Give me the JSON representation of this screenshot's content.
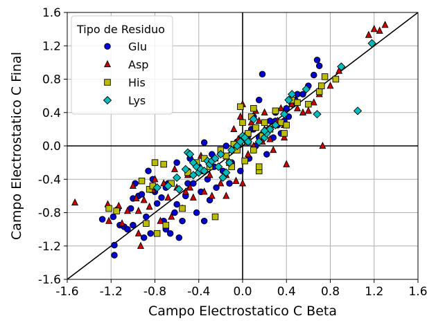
{
  "chart_data": {
    "type": "scatter",
    "xlabel": "Campo Electrostatico C Beta",
    "ylabel": "Campo Electrostatico C Final",
    "xlim": [
      -1.6,
      1.6
    ],
    "ylim": [
      -1.6,
      1.6
    ],
    "xticks": [
      "-1.6",
      "-1.2",
      "-0.8",
      "-0.4",
      "0.0",
      "0.4",
      "0.8",
      "1.2",
      "1.6"
    ],
    "yticks": [
      "-1.6",
      "-1.2",
      "-0.8",
      "-0.4",
      "0.0",
      "0.4",
      "0.8",
      "1.2",
      "1.6"
    ],
    "grid": true,
    "legend_title": "Tipo de Residuo",
    "legend_position": "top-left",
    "reference_line": {
      "from": [
        -1.6,
        -1.6
      ],
      "to": [
        1.6,
        1.6
      ]
    },
    "series": [
      {
        "name": "Glu",
        "marker": "circle",
        "color": "#0000cc",
        "points": [
          [
            -1.28,
            -0.88
          ],
          [
            -1.18,
            -0.85
          ],
          [
            -1.17,
            -1.19
          ],
          [
            -1.17,
            -1.31
          ],
          [
            -1.14,
            -0.76
          ],
          [
            -1.12,
            -0.95
          ],
          [
            -1.08,
            -0.97
          ],
          [
            -1.05,
            -1.0
          ],
          [
            -1.02,
            -0.75
          ],
          [
            -1.0,
            -0.63
          ],
          [
            -0.98,
            -0.45
          ],
          [
            -0.95,
            -0.6
          ],
          [
            -0.92,
            -0.58
          ],
          [
            -0.88,
            -0.85
          ],
          [
            -0.86,
            -0.3
          ],
          [
            -0.84,
            -1.05
          ],
          [
            -0.82,
            -0.4
          ],
          [
            -0.8,
            -0.55
          ],
          [
            -0.78,
            -0.69
          ],
          [
            -0.74,
            -0.62
          ],
          [
            -0.72,
            -0.9
          ],
          [
            -0.7,
            -1.0
          ],
          [
            -0.68,
            -0.45
          ],
          [
            -0.66,
            -1.05
          ],
          [
            -0.62,
            -0.8
          ],
          [
            -0.6,
            -0.7
          ],
          [
            -0.58,
            -1.1
          ],
          [
            -0.55,
            -0.9
          ],
          [
            -0.52,
            -0.6
          ],
          [
            -0.5,
            -0.3
          ],
          [
            -0.48,
            -0.15
          ],
          [
            -0.45,
            -0.45
          ],
          [
            -0.42,
            -0.8
          ],
          [
            -0.4,
            -0.25
          ],
          [
            -0.38,
            -0.55
          ],
          [
            -0.35,
            -0.9
          ],
          [
            -0.32,
            -0.4
          ],
          [
            -0.3,
            -0.65
          ],
          [
            -0.28,
            -0.1
          ],
          [
            -0.26,
            -0.25
          ],
          [
            -0.24,
            -0.5
          ],
          [
            -0.2,
            -0.1
          ],
          [
            -0.18,
            -0.3
          ],
          [
            -0.15,
            0.0
          ],
          [
            -0.12,
            -0.45
          ],
          [
            -0.1,
            -0.2
          ],
          [
            -0.08,
            -0.05
          ],
          [
            -0.05,
            0.05
          ],
          [
            -0.02,
            -0.3
          ],
          [
            0.0,
            0.1
          ],
          [
            0.04,
            0.05
          ],
          [
            0.06,
            -0.15
          ],
          [
            0.08,
            0.2
          ],
          [
            0.1,
            0.35
          ],
          [
            0.12,
            0.0
          ],
          [
            0.15,
            0.55
          ],
          [
            0.18,
            0.86
          ],
          [
            0.2,
            0.15
          ],
          [
            0.22,
            -0.1
          ],
          [
            0.25,
            0.3
          ],
          [
            0.28,
            0.1
          ],
          [
            0.3,
            0.4
          ],
          [
            0.32,
            0.25
          ],
          [
            0.35,
            0.15
          ],
          [
            0.38,
            0.3
          ],
          [
            0.4,
            0.45
          ],
          [
            0.42,
            0.35
          ],
          [
            0.45,
            0.5
          ],
          [
            0.48,
            0.55
          ],
          [
            0.5,
            0.62
          ],
          [
            0.55,
            0.62
          ],
          [
            0.6,
            0.72
          ],
          [
            0.65,
            0.85
          ],
          [
            0.68,
            1.03
          ],
          [
            0.7,
            0.96
          ],
          [
            -0.35,
            0.04
          ],
          [
            -0.6,
            -0.2
          ],
          [
            -0.9,
            -1.1
          ],
          [
            -1.0,
            -0.95
          ],
          [
            0.1,
            0.2
          ],
          [
            0.05,
            0.12
          ],
          [
            -0.5,
            -0.45
          ],
          [
            -0.3,
            -0.2
          ],
          [
            -0.7,
            -0.5
          ],
          [
            0.3,
            0.3
          ],
          [
            0.15,
            0.1
          ]
        ]
      },
      {
        "name": "Asp",
        "marker": "triangle",
        "color": "#cc0000",
        "points": [
          [
            -1.53,
            -0.68
          ],
          [
            -1.23,
            -0.7
          ],
          [
            -1.22,
            -0.9
          ],
          [
            -1.13,
            -0.72
          ],
          [
            -1.1,
            -0.93
          ],
          [
            -1.05,
            -0.78
          ],
          [
            -1.0,
            -0.48
          ],
          [
            -0.97,
            -0.63
          ],
          [
            -0.95,
            -1.05
          ],
          [
            -0.93,
            -1.2
          ],
          [
            -0.9,
            -0.65
          ],
          [
            -0.85,
            -0.73
          ],
          [
            -0.82,
            -0.53
          ],
          [
            -0.8,
            -0.4
          ],
          [
            -0.75,
            -0.9
          ],
          [
            -0.72,
            -0.45
          ],
          [
            -0.68,
            -0.62
          ],
          [
            -0.65,
            -0.85
          ],
          [
            -0.62,
            -0.28
          ],
          [
            -0.6,
            -0.5
          ],
          [
            -0.55,
            -0.75
          ],
          [
            -0.52,
            -0.55
          ],
          [
            -0.5,
            -0.35
          ],
          [
            -0.48,
            -0.5
          ],
          [
            -0.45,
            -0.62
          ],
          [
            -0.4,
            -0.3
          ],
          [
            -0.38,
            -0.12
          ],
          [
            -0.35,
            -0.55
          ],
          [
            -0.3,
            -0.35
          ],
          [
            -0.28,
            -0.6
          ],
          [
            -0.25,
            -0.15
          ],
          [
            -0.2,
            -0.45
          ],
          [
            -0.15,
            -0.35
          ],
          [
            -0.12,
            -0.2
          ],
          [
            -0.1,
            -0.05
          ],
          [
            -0.08,
            0.2
          ],
          [
            -0.06,
            -0.42
          ],
          [
            -0.04,
            0.08
          ],
          [
            -0.02,
            0.35
          ],
          [
            0.0,
            0.5
          ],
          [
            0.02,
            0.12
          ],
          [
            0.05,
            -0.1
          ],
          [
            0.08,
            0.28
          ],
          [
            0.1,
            0.0
          ],
          [
            0.12,
            0.42
          ],
          [
            0.15,
            0.3
          ],
          [
            0.18,
            0.05
          ],
          [
            0.2,
            0.2
          ],
          [
            0.25,
            0.08
          ],
          [
            0.28,
            -0.05
          ],
          [
            0.3,
            0.25
          ],
          [
            0.32,
            0.3
          ],
          [
            0.35,
            0.45
          ],
          [
            0.38,
            0.25
          ],
          [
            0.4,
            -0.22
          ],
          [
            0.43,
            0.55
          ],
          [
            0.45,
            0.5
          ],
          [
            0.5,
            0.45
          ],
          [
            0.55,
            0.4
          ],
          [
            0.6,
            0.42
          ],
          [
            0.65,
            0.52
          ],
          [
            0.7,
            0.62
          ],
          [
            0.73,
            0.0
          ],
          [
            0.8,
            0.72
          ],
          [
            0.88,
            0.9
          ],
          [
            1.15,
            1.33
          ],
          [
            1.2,
            1.4
          ],
          [
            1.25,
            1.38
          ],
          [
            1.3,
            1.45
          ],
          [
            -0.95,
            -0.78
          ],
          [
            -0.15,
            -0.6
          ],
          [
            0.0,
            -0.45
          ],
          [
            0.2,
            0.4
          ],
          [
            0.38,
            0.1
          ]
        ]
      },
      {
        "name": "His",
        "marker": "square",
        "color": "#bbbb00",
        "points": [
          [
            -1.22,
            -0.75
          ],
          [
            -1.15,
            -0.78
          ],
          [
            -0.92,
            -0.42
          ],
          [
            -0.88,
            -0.93
          ],
          [
            -0.85,
            -0.52
          ],
          [
            -0.82,
            -0.48
          ],
          [
            -0.8,
            -0.2
          ],
          [
            -0.78,
            -1.05
          ],
          [
            -0.72,
            -0.22
          ],
          [
            -0.7,
            -0.95
          ],
          [
            -0.55,
            -0.75
          ],
          [
            -0.5,
            -0.32
          ],
          [
            -0.42,
            -0.2
          ],
          [
            -0.38,
            -0.3
          ],
          [
            -0.35,
            -0.15
          ],
          [
            -0.3,
            -0.25
          ],
          [
            -0.25,
            -0.85
          ],
          [
            -0.2,
            -0.05
          ],
          [
            -0.15,
            -0.12
          ],
          [
            -0.12,
            -0.2
          ],
          [
            -0.1,
            -0.25
          ],
          [
            -0.08,
            0.02
          ],
          [
            -0.05,
            -0.05
          ],
          [
            -0.02,
            0.47
          ],
          [
            0.0,
            0.28
          ],
          [
            0.02,
            -0.18
          ],
          [
            0.05,
            0.05
          ],
          [
            0.08,
            0.35
          ],
          [
            0.1,
            0.45
          ],
          [
            0.12,
            0.22
          ],
          [
            0.15,
            -0.3
          ],
          [
            0.15,
            -0.25
          ],
          [
            0.18,
            0.12
          ],
          [
            0.2,
            0.28
          ],
          [
            0.25,
            0.2
          ],
          [
            0.3,
            0.42
          ],
          [
            0.35,
            0.28
          ],
          [
            0.38,
            0.15
          ],
          [
            0.4,
            0.25
          ],
          [
            0.45,
            0.55
          ],
          [
            0.5,
            0.52
          ],
          [
            0.6,
            0.5
          ],
          [
            0.7,
            0.65
          ],
          [
            0.72,
            0.72
          ],
          [
            0.75,
            0.83
          ],
          [
            0.85,
            0.8
          ],
          [
            0.1,
            -0.05
          ],
          [
            -0.65,
            -0.45
          ],
          [
            0.05,
            0.15
          ]
        ]
      },
      {
        "name": "Lys",
        "marker": "diamond",
        "color": "#00bbbb",
        "points": [
          [
            -0.78,
            -0.5
          ],
          [
            -0.68,
            -0.48
          ],
          [
            -0.6,
            -0.38
          ],
          [
            -0.58,
            -0.52
          ],
          [
            -0.52,
            -0.28
          ],
          [
            -0.5,
            -0.08
          ],
          [
            -0.48,
            -0.1
          ],
          [
            -0.45,
            -0.2
          ],
          [
            -0.42,
            -0.25
          ],
          [
            -0.4,
            -0.32
          ],
          [
            -0.38,
            -0.28
          ],
          [
            -0.35,
            -0.3
          ],
          [
            -0.32,
            -0.18
          ],
          [
            -0.3,
            -0.22
          ],
          [
            -0.28,
            -0.18
          ],
          [
            -0.25,
            -0.15
          ],
          [
            -0.22,
            -0.25
          ],
          [
            -0.2,
            -0.1
          ],
          [
            -0.18,
            -0.38
          ],
          [
            -0.15,
            -0.32
          ],
          [
            -0.12,
            -0.2
          ],
          [
            -0.1,
            -0.05
          ],
          [
            -0.05,
            0.0
          ],
          [
            -0.02,
            0.05
          ],
          [
            0.0,
            0.12
          ],
          [
            0.02,
            0.1
          ],
          [
            0.05,
            0.05
          ],
          [
            0.1,
            0.32
          ],
          [
            0.15,
            0.05
          ],
          [
            0.2,
            0.1
          ],
          [
            0.22,
            0.15
          ],
          [
            0.25,
            0.2
          ],
          [
            0.3,
            0.25
          ],
          [
            0.38,
            0.38
          ],
          [
            0.42,
            0.55
          ],
          [
            0.45,
            0.62
          ],
          [
            0.58,
            0.68
          ],
          [
            0.68,
            0.38
          ],
          [
            0.9,
            0.95
          ],
          [
            1.05,
            0.42
          ],
          [
            1.18,
            1.23
          ],
          [
            0.2,
            0.18
          ],
          [
            -0.45,
            -0.35
          ]
        ]
      }
    ]
  }
}
